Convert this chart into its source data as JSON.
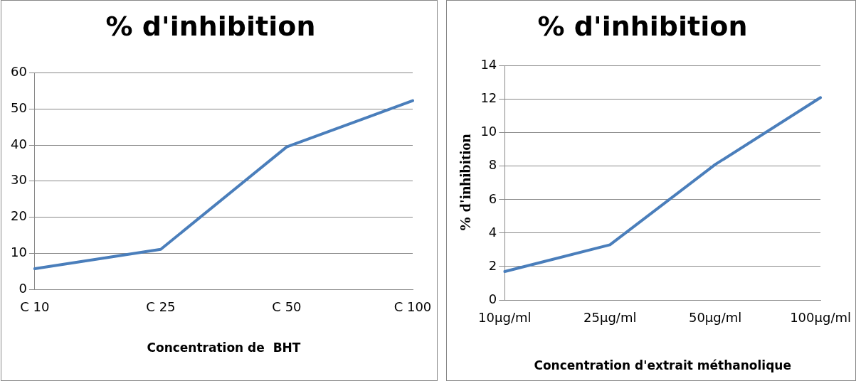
{
  "chart_data": [
    {
      "type": "line",
      "title": "% d'inhibition",
      "xlabel": "Concentration de  BHT",
      "categories": [
        "C 10",
        "C 25",
        "C 50",
        "C 100"
      ],
      "series": [
        {
          "color": "#4a7ebb",
          "values": [
            5.7,
            11.1,
            39.5,
            52.3
          ]
        }
      ],
      "ylim": [
        0,
        60
      ],
      "yticks": [
        0,
        10,
        20,
        30,
        40,
        50,
        60
      ],
      "grid": "y",
      "legend": false,
      "marker": "none",
      "line_style": "solid"
    },
    {
      "type": "line",
      "title": "% d'inhibition",
      "xlabel": "Concentration d'extrait méthanolique",
      "ylabel": "% d'inhibition",
      "categories": [
        "10µg/ml",
        "25µg/ml",
        "50µg/ml",
        "100µg/ml"
      ],
      "series": [
        {
          "color": "#4a7ebb",
          "values": [
            1.7,
            3.3,
            8.1,
            12.1
          ]
        }
      ],
      "ylim": [
        0,
        14
      ],
      "yticks": [
        0,
        2,
        4,
        6,
        8,
        10,
        12,
        14
      ],
      "grid": "y",
      "legend": false,
      "marker": "none",
      "line_style": "solid"
    }
  ]
}
